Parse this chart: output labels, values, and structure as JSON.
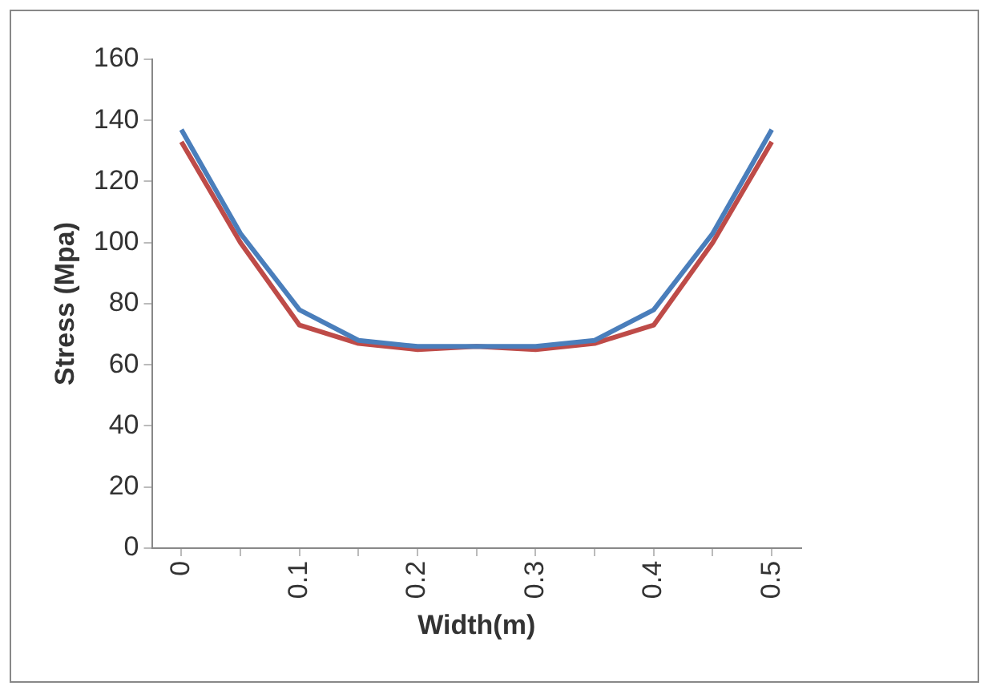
{
  "chart_data": {
    "type": "line",
    "xlabel": "Width(m)",
    "ylabel": "Stress (Mpa)",
    "categories": [
      "0",
      null,
      "0.1",
      null,
      "0.2",
      null,
      "0.3",
      null,
      "0.4",
      null,
      "0.5"
    ],
    "ylim": [
      0,
      160
    ],
    "yticks": [
      0,
      20,
      40,
      60,
      80,
      100,
      120,
      140,
      160
    ],
    "legend": false,
    "marker": "none",
    "series": [
      {
        "color": "#4a7ebb",
        "values": [
          137,
          103,
          78,
          68,
          66,
          66,
          66,
          68,
          78,
          103,
          137
        ]
      },
      {
        "color": "#be4b48",
        "values": [
          133,
          100,
          73,
          67,
          65,
          66,
          65,
          67,
          73,
          100,
          133
        ]
      }
    ]
  }
}
